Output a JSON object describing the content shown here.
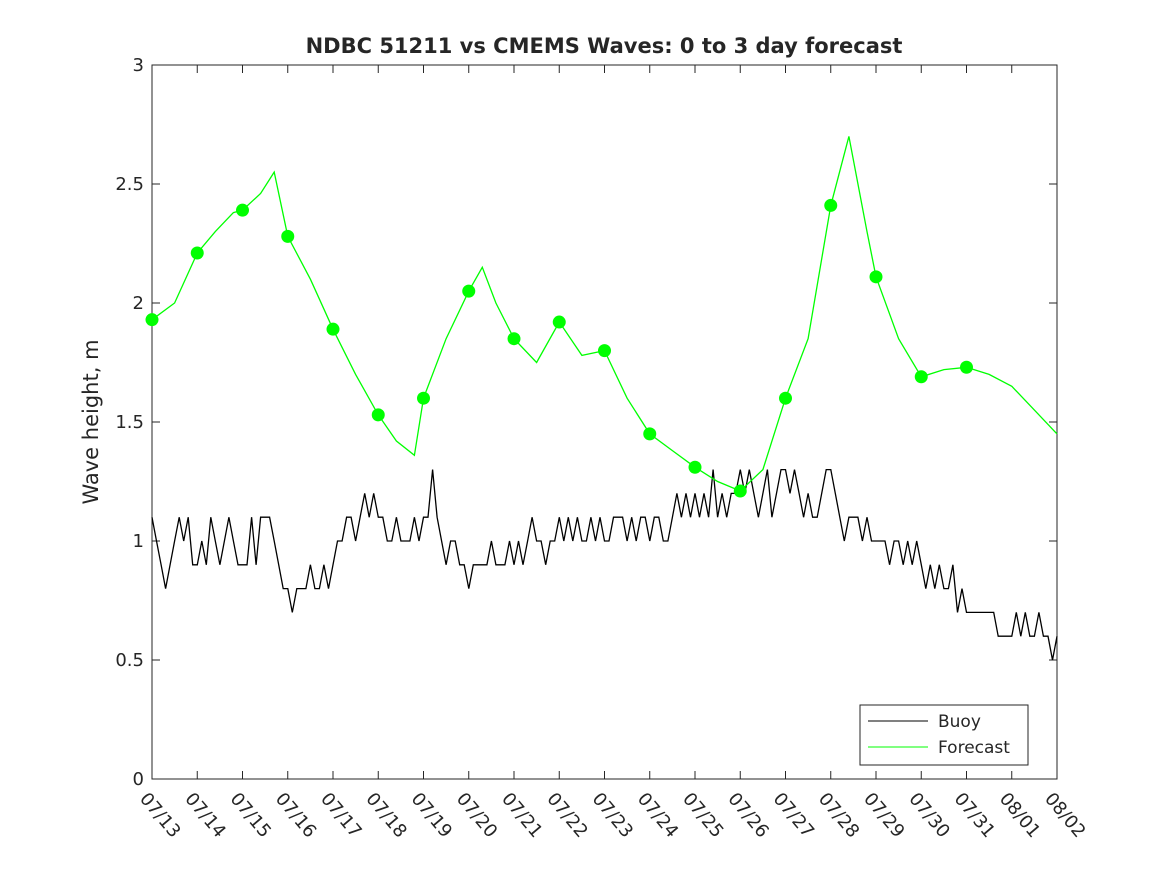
{
  "chart_data": {
    "type": "line",
    "title": "NDBC 51211 vs CMEMS Waves: 0 to 3 day forecast",
    "xlabel": "",
    "ylabel": "Wave height, m",
    "ylim": [
      0,
      3
    ],
    "xlim": [
      0,
      20
    ],
    "x_tick_labels": [
      "07/13",
      "07/14",
      "07/15",
      "07/16",
      "07/17",
      "07/18",
      "07/19",
      "07/20",
      "07/21",
      "07/22",
      "07/23",
      "07/24",
      "07/25",
      "07/26",
      "07/27",
      "07/28",
      "07/29",
      "07/30",
      "07/31",
      "08/01",
      "08/02"
    ],
    "y_ticks": [
      0,
      0.5,
      1,
      1.5,
      2,
      2.5,
      3
    ],
    "y_tick_labels": [
      "0",
      "0.5",
      "1",
      "1.5",
      "2",
      "2.5",
      "3"
    ],
    "grid": false,
    "legend": {
      "placement": "bottom-right",
      "entries": [
        "Buoy",
        "Forecast"
      ]
    },
    "colors": {
      "buoy": "#000000",
      "forecast": "#00ff00"
    },
    "series": [
      {
        "name": "Buoy",
        "points": [
          [
            0,
            1.1
          ],
          [
            0.1,
            1.0
          ],
          [
            0.2,
            0.9
          ],
          [
            0.3,
            0.8
          ],
          [
            0.4,
            0.9
          ],
          [
            0.5,
            1.0
          ],
          [
            0.6,
            1.1
          ],
          [
            0.7,
            1.0
          ],
          [
            0.8,
            1.1
          ],
          [
            0.9,
            0.9
          ],
          [
            1.0,
            0.9
          ],
          [
            1.1,
            1.0
          ],
          [
            1.2,
            0.9
          ],
          [
            1.3,
            1.1
          ],
          [
            1.4,
            1.0
          ],
          [
            1.5,
            0.9
          ],
          [
            1.6,
            1.0
          ],
          [
            1.7,
            1.1
          ],
          [
            1.8,
            1.0
          ],
          [
            1.9,
            0.9
          ],
          [
            2.0,
            0.9
          ],
          [
            2.1,
            0.9
          ],
          [
            2.2,
            1.1
          ],
          [
            2.3,
            0.9
          ],
          [
            2.4,
            1.1
          ],
          [
            2.5,
            1.1
          ],
          [
            2.6,
            1.1
          ],
          [
            2.7,
            1.0
          ],
          [
            2.8,
            0.9
          ],
          [
            2.9,
            0.8
          ],
          [
            3.0,
            0.8
          ],
          [
            3.1,
            0.7
          ],
          [
            3.2,
            0.8
          ],
          [
            3.3,
            0.8
          ],
          [
            3.4,
            0.8
          ],
          [
            3.5,
            0.9
          ],
          [
            3.6,
            0.8
          ],
          [
            3.7,
            0.8
          ],
          [
            3.8,
            0.9
          ],
          [
            3.9,
            0.8
          ],
          [
            4.0,
            0.9
          ],
          [
            4.1,
            1.0
          ],
          [
            4.2,
            1.0
          ],
          [
            4.3,
            1.1
          ],
          [
            4.4,
            1.1
          ],
          [
            4.5,
            1.0
          ],
          [
            4.6,
            1.1
          ],
          [
            4.7,
            1.2
          ],
          [
            4.8,
            1.1
          ],
          [
            4.9,
            1.2
          ],
          [
            5.0,
            1.1
          ],
          [
            5.1,
            1.1
          ],
          [
            5.2,
            1.0
          ],
          [
            5.3,
            1.0
          ],
          [
            5.4,
            1.1
          ],
          [
            5.5,
            1.0
          ],
          [
            5.6,
            1.0
          ],
          [
            5.7,
            1.0
          ],
          [
            5.8,
            1.1
          ],
          [
            5.9,
            1.0
          ],
          [
            6.0,
            1.1
          ],
          [
            6.1,
            1.1
          ],
          [
            6.2,
            1.3
          ],
          [
            6.3,
            1.1
          ],
          [
            6.4,
            1.0
          ],
          [
            6.5,
            0.9
          ],
          [
            6.6,
            1.0
          ],
          [
            6.7,
            1.0
          ],
          [
            6.8,
            0.9
          ],
          [
            6.9,
            0.9
          ],
          [
            7.0,
            0.8
          ],
          [
            7.1,
            0.9
          ],
          [
            7.2,
            0.9
          ],
          [
            7.3,
            0.9
          ],
          [
            7.4,
            0.9
          ],
          [
            7.5,
            1.0
          ],
          [
            7.6,
            0.9
          ],
          [
            7.7,
            0.9
          ],
          [
            7.8,
            0.9
          ],
          [
            7.9,
            1.0
          ],
          [
            8.0,
            0.9
          ],
          [
            8.1,
            1.0
          ],
          [
            8.2,
            0.9
          ],
          [
            8.3,
            1.0
          ],
          [
            8.4,
            1.1
          ],
          [
            8.5,
            1.0
          ],
          [
            8.6,
            1.0
          ],
          [
            8.7,
            0.9
          ],
          [
            8.8,
            1.0
          ],
          [
            8.9,
            1.0
          ],
          [
            9.0,
            1.1
          ],
          [
            9.1,
            1.0
          ],
          [
            9.2,
            1.1
          ],
          [
            9.3,
            1.0
          ],
          [
            9.4,
            1.1
          ],
          [
            9.5,
            1.0
          ],
          [
            9.6,
            1.0
          ],
          [
            9.7,
            1.1
          ],
          [
            9.8,
            1.0
          ],
          [
            9.9,
            1.1
          ],
          [
            10.0,
            1.0
          ],
          [
            10.1,
            1.0
          ],
          [
            10.2,
            1.1
          ],
          [
            10.3,
            1.1
          ],
          [
            10.4,
            1.1
          ],
          [
            10.5,
            1.0
          ],
          [
            10.6,
            1.1
          ],
          [
            10.7,
            1.0
          ],
          [
            10.8,
            1.1
          ],
          [
            10.9,
            1.1
          ],
          [
            11.0,
            1.0
          ],
          [
            11.1,
            1.1
          ],
          [
            11.2,
            1.1
          ],
          [
            11.3,
            1.0
          ],
          [
            11.4,
            1.0
          ],
          [
            11.5,
            1.1
          ],
          [
            11.6,
            1.2
          ],
          [
            11.7,
            1.1
          ],
          [
            11.8,
            1.2
          ],
          [
            11.9,
            1.1
          ],
          [
            12.0,
            1.2
          ],
          [
            12.1,
            1.1
          ],
          [
            12.2,
            1.2
          ],
          [
            12.3,
            1.1
          ],
          [
            12.4,
            1.3
          ],
          [
            12.5,
            1.1
          ],
          [
            12.6,
            1.2
          ],
          [
            12.7,
            1.1
          ],
          [
            12.8,
            1.2
          ],
          [
            12.9,
            1.2
          ],
          [
            13.0,
            1.3
          ],
          [
            13.1,
            1.2
          ],
          [
            13.2,
            1.3
          ],
          [
            13.3,
            1.2
          ],
          [
            13.4,
            1.1
          ],
          [
            13.5,
            1.2
          ],
          [
            13.6,
            1.3
          ],
          [
            13.7,
            1.1
          ],
          [
            13.8,
            1.2
          ],
          [
            13.9,
            1.3
          ],
          [
            14.0,
            1.3
          ],
          [
            14.1,
            1.2
          ],
          [
            14.2,
            1.3
          ],
          [
            14.3,
            1.2
          ],
          [
            14.4,
            1.1
          ],
          [
            14.5,
            1.2
          ],
          [
            14.6,
            1.1
          ],
          [
            14.7,
            1.1
          ],
          [
            14.8,
            1.2
          ],
          [
            14.9,
            1.3
          ],
          [
            15.0,
            1.3
          ],
          [
            15.1,
            1.2
          ],
          [
            15.2,
            1.1
          ],
          [
            15.3,
            1.0
          ],
          [
            15.4,
            1.1
          ],
          [
            15.5,
            1.1
          ],
          [
            15.6,
            1.1
          ],
          [
            15.7,
            1.0
          ],
          [
            15.8,
            1.1
          ],
          [
            15.9,
            1.0
          ],
          [
            16.0,
            1.0
          ],
          [
            16.1,
            1.0
          ],
          [
            16.2,
            1.0
          ],
          [
            16.3,
            0.9
          ],
          [
            16.4,
            1.0
          ],
          [
            16.5,
            1.0
          ],
          [
            16.6,
            0.9
          ],
          [
            16.7,
            1.0
          ],
          [
            16.8,
            0.9
          ],
          [
            16.9,
            1.0
          ],
          [
            17.0,
            0.9
          ],
          [
            17.1,
            0.8
          ],
          [
            17.2,
            0.9
          ],
          [
            17.3,
            0.8
          ],
          [
            17.4,
            0.9
          ],
          [
            17.5,
            0.8
          ],
          [
            17.6,
            0.8
          ],
          [
            17.7,
            0.9
          ],
          [
            17.8,
            0.7
          ],
          [
            17.9,
            0.8
          ],
          [
            18.0,
            0.7
          ],
          [
            18.1,
            0.7
          ],
          [
            18.2,
            0.7
          ],
          [
            18.3,
            0.7
          ],
          [
            18.4,
            0.7
          ],
          [
            18.5,
            0.7
          ],
          [
            18.6,
            0.7
          ],
          [
            18.7,
            0.6
          ],
          [
            18.8,
            0.6
          ],
          [
            18.9,
            0.6
          ],
          [
            19.0,
            0.6
          ],
          [
            19.1,
            0.7
          ],
          [
            19.2,
            0.6
          ],
          [
            19.3,
            0.7
          ],
          [
            19.4,
            0.6
          ],
          [
            19.5,
            0.6
          ],
          [
            19.6,
            0.7
          ],
          [
            19.7,
            0.6
          ],
          [
            19.8,
            0.6
          ],
          [
            19.9,
            0.5
          ],
          [
            20.0,
            0.6
          ]
        ]
      },
      {
        "name": "Forecast",
        "points": [
          [
            0,
            1.93
          ],
          [
            0.5,
            2.0
          ],
          [
            1.0,
            2.21
          ],
          [
            1.4,
            2.3
          ],
          [
            1.8,
            2.38
          ],
          [
            2.0,
            2.39
          ],
          [
            2.4,
            2.46
          ],
          [
            2.7,
            2.55
          ],
          [
            3.0,
            2.28
          ],
          [
            3.5,
            2.1
          ],
          [
            4.0,
            1.89
          ],
          [
            4.5,
            1.7
          ],
          [
            5.0,
            1.53
          ],
          [
            5.4,
            1.42
          ],
          [
            5.8,
            1.36
          ],
          [
            6.0,
            1.6
          ],
          [
            6.5,
            1.85
          ],
          [
            7.0,
            2.05
          ],
          [
            7.3,
            2.15
          ],
          [
            7.6,
            2.0
          ],
          [
            8.0,
            1.85
          ],
          [
            8.5,
            1.75
          ],
          [
            9.0,
            1.92
          ],
          [
            9.5,
            1.78
          ],
          [
            10.0,
            1.8
          ],
          [
            10.5,
            1.6
          ],
          [
            11.0,
            1.45
          ],
          [
            11.5,
            1.38
          ],
          [
            12.0,
            1.31
          ],
          [
            12.5,
            1.25
          ],
          [
            13.0,
            1.21
          ],
          [
            13.5,
            1.3
          ],
          [
            14.0,
            1.6
          ],
          [
            14.5,
            1.85
          ],
          [
            15.0,
            2.41
          ],
          [
            15.4,
            2.7
          ],
          [
            15.8,
            2.3
          ],
          [
            16.0,
            2.11
          ],
          [
            16.5,
            1.85
          ],
          [
            17.0,
            1.69
          ],
          [
            17.5,
            1.72
          ],
          [
            18.0,
            1.73
          ],
          [
            18.5,
            1.7
          ],
          [
            19.0,
            1.65
          ],
          [
            19.5,
            1.55
          ],
          [
            20.0,
            1.45
          ]
        ]
      }
    ],
    "daily_markers": [
      [
        0,
        1.93
      ],
      [
        1,
        2.21
      ],
      [
        2,
        2.39
      ],
      [
        3,
        2.28
      ],
      [
        4,
        1.89
      ],
      [
        5,
        1.53
      ],
      [
        6,
        1.6
      ],
      [
        7,
        2.05
      ],
      [
        8,
        1.85
      ],
      [
        9,
        1.92
      ],
      [
        10,
        1.8
      ],
      [
        11,
        1.45
      ],
      [
        12,
        1.31
      ],
      [
        13,
        1.21
      ],
      [
        14,
        1.6
      ],
      [
        15,
        2.41
      ],
      [
        16,
        2.11
      ],
      [
        17,
        1.69
      ],
      [
        18,
        1.73
      ]
    ]
  }
}
